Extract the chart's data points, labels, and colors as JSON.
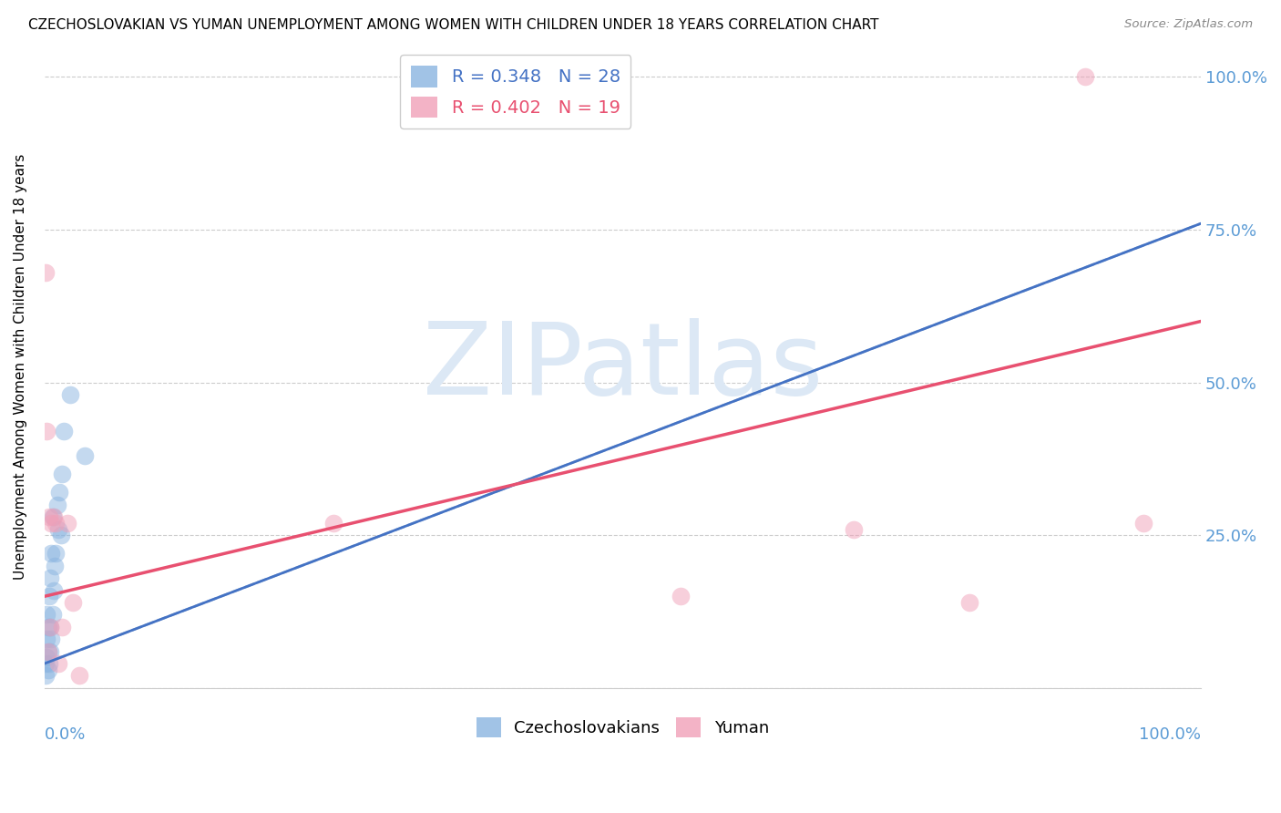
{
  "title": "CZECHOSLOVAKIAN VS YUMAN UNEMPLOYMENT AMONG WOMEN WITH CHILDREN UNDER 18 YEARS CORRELATION CHART",
  "source": "Source: ZipAtlas.com",
  "ylabel": "Unemployment Among Women with Children Under 18 years",
  "background_color": "#ffffff",
  "watermark": "ZIPatlas",
  "watermark_color": "#dce8f5",
  "legend_R_blue": "R = 0.348",
  "legend_N_blue": "N = 28",
  "legend_R_pink": "R = 0.402",
  "legend_N_pink": "N = 19",
  "blue_color": "#8ab4e0",
  "pink_color": "#f0a0b8",
  "blue_line_color": "#4472c4",
  "pink_line_color": "#e85070",
  "dashed_line_color": "#9ab8d8",
  "grid_color": "#cccccc",
  "axis_tick_color": "#5b9bd5",
  "czech_points_x": [
    0.001,
    0.001,
    0.002,
    0.002,
    0.002,
    0.003,
    0.003,
    0.003,
    0.004,
    0.004,
    0.005,
    0.005,
    0.005,
    0.006,
    0.006,
    0.007,
    0.007,
    0.008,
    0.009,
    0.01,
    0.011,
    0.012,
    0.013,
    0.014,
    0.015,
    0.017,
    0.022,
    0.035
  ],
  "czech_points_y": [
    0.02,
    0.04,
    0.05,
    0.08,
    0.12,
    0.03,
    0.06,
    0.1,
    0.04,
    0.15,
    0.06,
    0.1,
    0.18,
    0.08,
    0.22,
    0.12,
    0.28,
    0.16,
    0.2,
    0.22,
    0.3,
    0.26,
    0.32,
    0.25,
    0.35,
    0.42,
    0.48,
    0.38
  ],
  "yuman_points_x": [
    0.001,
    0.002,
    0.003,
    0.004,
    0.005,
    0.006,
    0.008,
    0.01,
    0.012,
    0.015,
    0.02,
    0.025,
    0.03,
    0.25,
    0.55,
    0.7,
    0.8,
    0.9,
    0.95
  ],
  "yuman_points_y": [
    0.68,
    0.42,
    0.06,
    0.28,
    0.1,
    0.27,
    0.28,
    0.27,
    0.04,
    0.1,
    0.27,
    0.14,
    0.02,
    0.27,
    0.15,
    0.26,
    0.14,
    1.0,
    0.27
  ],
  "czech_line_x0": 0.0,
  "czech_line_x1": 1.0,
  "czech_line_y0": 0.04,
  "czech_line_y1": 0.76,
  "yuman_line_x0": 0.0,
  "yuman_line_x1": 1.0,
  "yuman_line_y0": 0.15,
  "yuman_line_y1": 0.6,
  "xlim": [
    0.0,
    1.0
  ],
  "ylim": [
    0.0,
    1.05
  ],
  "xtick_left_label": "0.0%",
  "xtick_right_label": "100.0%",
  "ytick_labels_right": [
    "25.0%",
    "50.0%",
    "75.0%",
    "100.0%"
  ],
  "ytick_positions_right": [
    0.25,
    0.5,
    0.75,
    1.0
  ]
}
